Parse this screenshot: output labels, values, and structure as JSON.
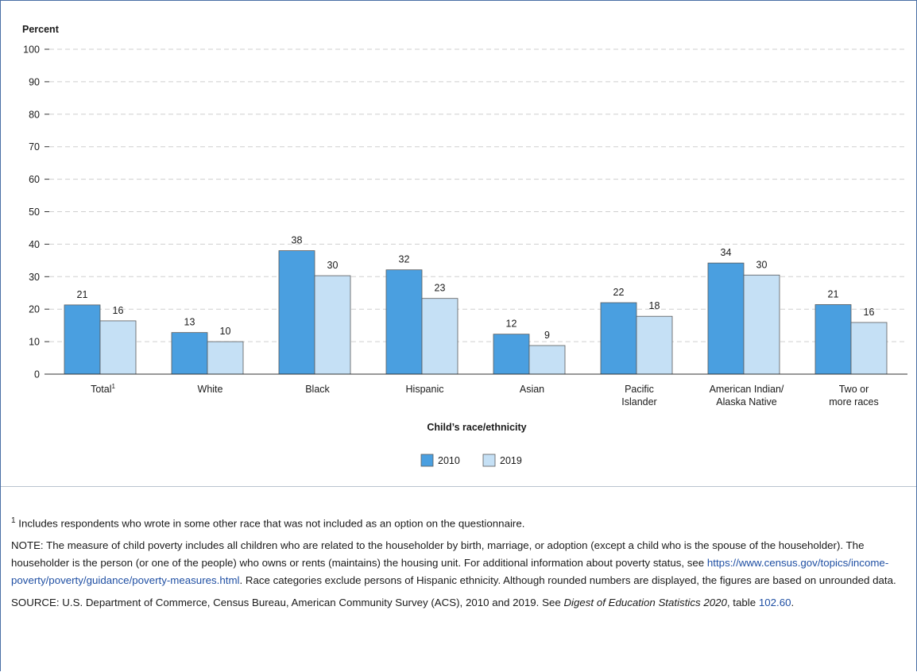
{
  "chart_data": {
    "type": "bar",
    "ylabel": "Percent",
    "xlabel": "Child’s race/ethnicity",
    "ylim": [
      0,
      100
    ],
    "yticks": [
      0,
      10,
      20,
      30,
      40,
      50,
      60,
      70,
      80,
      90,
      100
    ],
    "grid": true,
    "legend_position": "bottom-center",
    "categories": [
      {
        "lines": [
          "Total"
        ],
        "sup": "1"
      },
      {
        "lines": [
          "White"
        ],
        "sup": ""
      },
      {
        "lines": [
          "Black"
        ],
        "sup": ""
      },
      {
        "lines": [
          "Hispanic"
        ],
        "sup": ""
      },
      {
        "lines": [
          "Asian"
        ],
        "sup": ""
      },
      {
        "lines": [
          "Pacific",
          "Islander"
        ],
        "sup": ""
      },
      {
        "lines": [
          "American Indian/",
          "Alaska Native"
        ],
        "sup": ""
      },
      {
        "lines": [
          "Two or",
          "more races"
        ],
        "sup": ""
      }
    ],
    "series": [
      {
        "name": "2010",
        "color": "#4a9fe0",
        "values": [
          21.3,
          12.8,
          38.0,
          32.1,
          12.3,
          22.0,
          34.2,
          21.4
        ],
        "labels": [
          "21",
          "13",
          "38",
          "32",
          "12",
          "22",
          "34",
          "21"
        ]
      },
      {
        "name": "2019",
        "color": "#c5e0f5",
        "values": [
          16.4,
          10.0,
          30.3,
          23.3,
          8.8,
          17.8,
          30.5,
          15.9
        ],
        "labels": [
          "16",
          "10",
          "30",
          "23",
          "9",
          "18",
          "30",
          "16"
        ]
      }
    ]
  },
  "notes": {
    "footnote_sup": "1",
    "footnote_text": " Includes respondents who wrote in some other race that was not included as an option on the questionnaire.",
    "note_1": "NOTE: The measure of child poverty includes all children who are related to the householder by birth, marriage, or adoption (except a child who is the spouse of the householder). The householder is the person (or one of the people) who owns or rents (maintains) the housing unit. For additional information about poverty status, see ",
    "note_link": "https://www.census.gov/topics/income-poverty/poverty/guidance/poverty-measures.html",
    "note_2": ". Race categories exclude persons of Hispanic ethnicity. Although rounded numbers are displayed, the figures are based on unrounded data.",
    "source_1": "SOURCE: U.S. Department of Commerce, Census Bureau, American Community Survey (ACS), 2010 and 2019. See ",
    "source_italic": "Digest of Education Statistics 2020",
    "source_2": ", table ",
    "source_link": "102.60",
    "source_3": "."
  }
}
